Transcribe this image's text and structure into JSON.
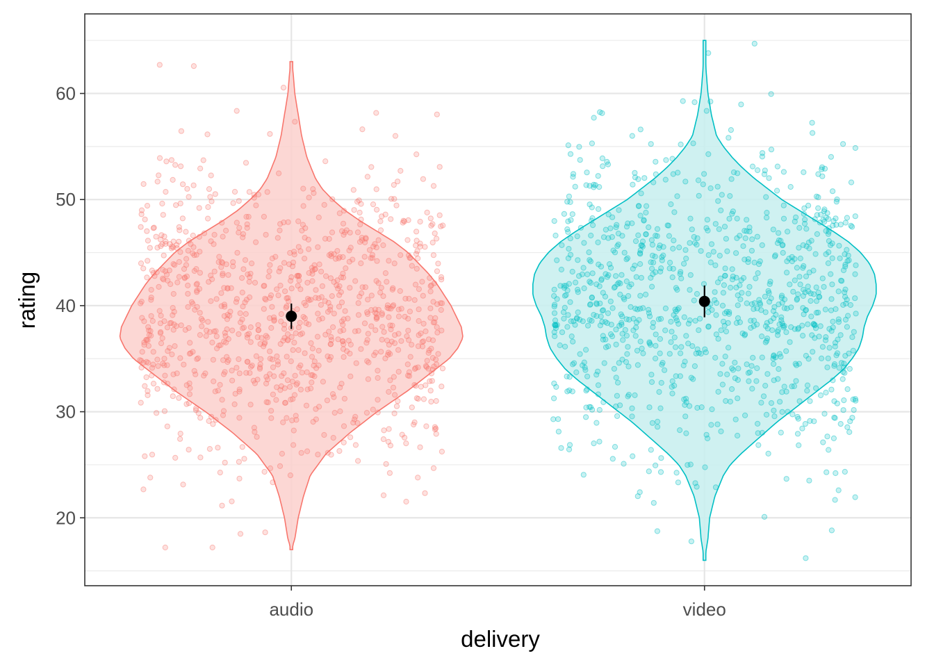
{
  "chart_data": {
    "type": "violin",
    "xlabel": "delivery",
    "ylabel": "rating",
    "categories": [
      "audio",
      "video"
    ],
    "ylim": [
      13.6,
      67.5
    ],
    "yticks": [
      20,
      30,
      40,
      50,
      60
    ],
    "grid": true,
    "legend": "none",
    "series": [
      {
        "category": "audio",
        "color": "#F8766D",
        "fill": "#FBD0CC",
        "mean": 39.0,
        "ci": [
          37.8,
          40.2
        ],
        "range": [
          17,
          63
        ],
        "point_count": 1000,
        "density_profile": [
          [
            17,
            0.0
          ],
          [
            18,
            0.02
          ],
          [
            19,
            0.03
          ],
          [
            20,
            0.04
          ],
          [
            22,
            0.07
          ],
          [
            24,
            0.11
          ],
          [
            26,
            0.2
          ],
          [
            27,
            0.27
          ],
          [
            28,
            0.34
          ],
          [
            29,
            0.42
          ],
          [
            30,
            0.5
          ],
          [
            31,
            0.59
          ],
          [
            32,
            0.68
          ],
          [
            33,
            0.76
          ],
          [
            34,
            0.84
          ],
          [
            35,
            0.92
          ],
          [
            36,
            0.97
          ],
          [
            37,
            1.0
          ],
          [
            38,
            0.99
          ],
          [
            39,
            0.96
          ],
          [
            40,
            0.93
          ],
          [
            41,
            0.89
          ],
          [
            42,
            0.85
          ],
          [
            43,
            0.8
          ],
          [
            44,
            0.74
          ],
          [
            45,
            0.68
          ],
          [
            46,
            0.6
          ],
          [
            47,
            0.5
          ],
          [
            48,
            0.4
          ],
          [
            49,
            0.31
          ],
          [
            50,
            0.24
          ],
          [
            51,
            0.18
          ],
          [
            52,
            0.14
          ],
          [
            54,
            0.09
          ],
          [
            56,
            0.06
          ],
          [
            58,
            0.04
          ],
          [
            60,
            0.02
          ],
          [
            62,
            0.01
          ],
          [
            63,
            0.0
          ]
        ]
      },
      {
        "category": "video",
        "color": "#00BFC4",
        "fill": "#C7EEEF",
        "mean": 40.4,
        "ci": [
          38.9,
          41.9
        ],
        "range": [
          16,
          65
        ],
        "point_count": 1000,
        "density_profile": [
          [
            16,
            0.0
          ],
          [
            17,
            0.01
          ],
          [
            18,
            0.02
          ],
          [
            20,
            0.03
          ],
          [
            22,
            0.06
          ],
          [
            24,
            0.11
          ],
          [
            25,
            0.15
          ],
          [
            26,
            0.21
          ],
          [
            27,
            0.28
          ],
          [
            28,
            0.35
          ],
          [
            29,
            0.42
          ],
          [
            30,
            0.5
          ],
          [
            31,
            0.58
          ],
          [
            32,
            0.66
          ],
          [
            33,
            0.74
          ],
          [
            34,
            0.81
          ],
          [
            35,
            0.86
          ],
          [
            36,
            0.9
          ],
          [
            37,
            0.92
          ],
          [
            38,
            0.93
          ],
          [
            39,
            0.95
          ],
          [
            40,
            0.98
          ],
          [
            41,
            1.0
          ],
          [
            42,
            1.0
          ],
          [
            43,
            0.99
          ],
          [
            44,
            0.96
          ],
          [
            45,
            0.91
          ],
          [
            46,
            0.84
          ],
          [
            47,
            0.75
          ],
          [
            48,
            0.65
          ],
          [
            49,
            0.55
          ],
          [
            50,
            0.45
          ],
          [
            51,
            0.37
          ],
          [
            52,
            0.29
          ],
          [
            53,
            0.22
          ],
          [
            54,
            0.16
          ],
          [
            55,
            0.11
          ],
          [
            56,
            0.07
          ],
          [
            58,
            0.04
          ],
          [
            60,
            0.02
          ],
          [
            62,
            0.01
          ],
          [
            65,
            0.0
          ]
        ]
      }
    ]
  }
}
